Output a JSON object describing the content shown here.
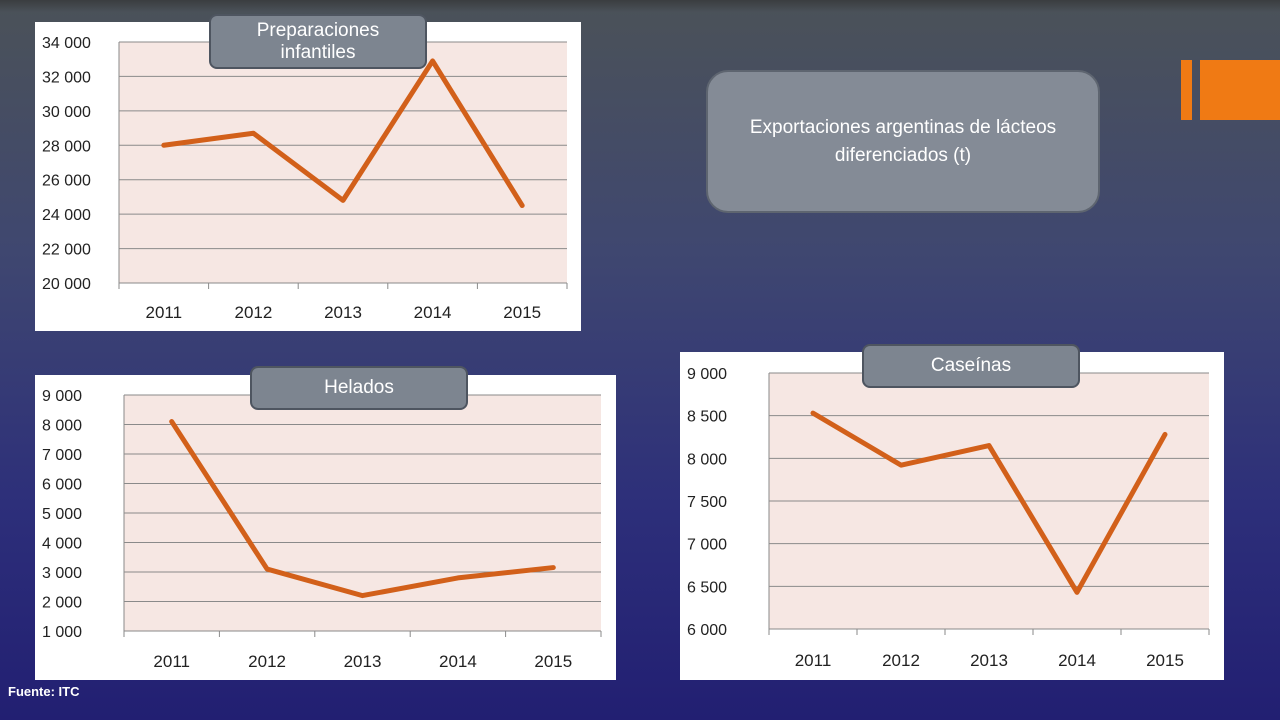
{
  "title": "Exportaciones argentinas de lácteos diferenciados (t)",
  "source": "Fuente: ITC",
  "colors": {
    "line": "#d2601a",
    "plot_bg": "#f6e7e3",
    "label_bg": "#7d8590",
    "accent": "#f07a14"
  },
  "chart_data": [
    {
      "type": "line",
      "title": "Preparaciones infantiles",
      "categories": [
        "2011",
        "2012",
        "2013",
        "2014",
        "2015"
      ],
      "values": [
        28000,
        28700,
        24800,
        32900,
        24500
      ],
      "ylim": [
        20000,
        34000
      ],
      "yticks": [
        20000,
        22000,
        24000,
        26000,
        28000,
        30000,
        32000,
        34000
      ],
      "ytick_labels": [
        "20 000",
        "22 000",
        "24 000",
        "26 000",
        "28 000",
        "30 000",
        "32 000",
        "34 000"
      ],
      "grid": true,
      "legend": "none"
    },
    {
      "type": "line",
      "title": "Helados",
      "categories": [
        "2011",
        "2012",
        "2013",
        "2014",
        "2015"
      ],
      "values": [
        8100,
        3100,
        2200,
        2800,
        3150
      ],
      "ylim": [
        1000,
        9000
      ],
      "yticks": [
        1000,
        2000,
        3000,
        4000,
        5000,
        6000,
        7000,
        8000,
        9000
      ],
      "ytick_labels": [
        "1 000",
        "2 000",
        "3 000",
        "4 000",
        "5 000",
        "6 000",
        "7 000",
        "8 000",
        "9 000"
      ],
      "grid": true,
      "legend": "none"
    },
    {
      "type": "line",
      "title": "Caseínas",
      "categories": [
        "2011",
        "2012",
        "2013",
        "2014",
        "2015"
      ],
      "values": [
        8530,
        7920,
        8150,
        6430,
        8280
      ],
      "ylim": [
        6000,
        9000
      ],
      "yticks": [
        6000,
        6500,
        7000,
        7500,
        8000,
        8500,
        9000
      ],
      "ytick_labels": [
        "6 000",
        "6 500",
        "7 000",
        "7 500",
        "8 000",
        "8 500",
        "9 000"
      ],
      "grid": true,
      "legend": "none"
    }
  ]
}
